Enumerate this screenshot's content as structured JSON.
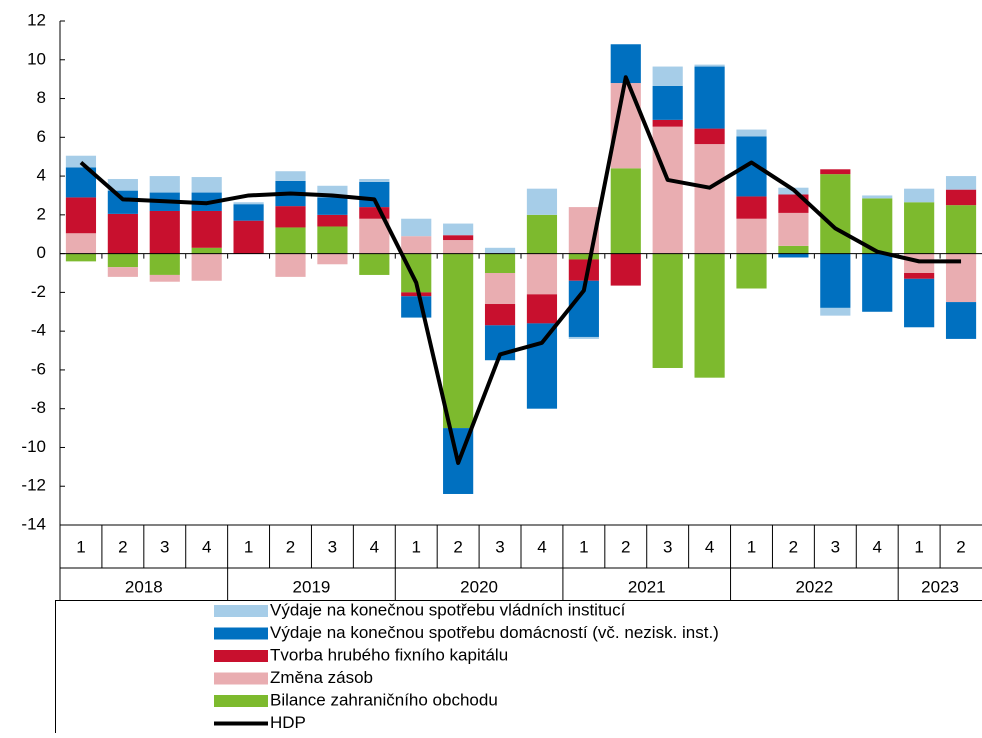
{
  "chart_data": {
    "type": "bar",
    "stacked": true,
    "categories": [
      "1",
      "2",
      "3",
      "4",
      "1",
      "2",
      "3",
      "4",
      "1",
      "2",
      "3",
      "4",
      "1",
      "2",
      "3",
      "4",
      "1",
      "2",
      "3",
      "4",
      "1",
      "2"
    ],
    "x_groups": [
      {
        "label": "2018",
        "count": 4
      },
      {
        "label": "2019",
        "count": 4
      },
      {
        "label": "2020",
        "count": 4
      },
      {
        "label": "2021",
        "count": 4
      },
      {
        "label": "2022",
        "count": 4
      },
      {
        "label": "2023",
        "count": 2
      }
    ],
    "ylim": [
      -14,
      12
    ],
    "yticks": [
      -14,
      -12,
      -10,
      -8,
      -6,
      -4,
      -2,
      0,
      2,
      4,
      6,
      8,
      10,
      12
    ],
    "series": [
      {
        "name": "Výdaje na konečnou spotřebu vládních institucí",
        "color": "#a6cde8",
        "values": [
          0.6,
          0.6,
          0.85,
          0.8,
          0.1,
          0.5,
          0.6,
          0.15,
          0.9,
          0.6,
          0.3,
          1.35,
          -0.1,
          0,
          1.0,
          0.1,
          0.35,
          0.35,
          -0.4,
          0.15,
          0.7,
          0.7
        ]
      },
      {
        "name": "Výdaje na konečnou spotřebu domácností (vč. nezisk. inst.)",
        "color": "#0070c0",
        "values": [
          1.55,
          1.2,
          0.95,
          0.95,
          0.85,
          1.3,
          0.9,
          1.3,
          -1.1,
          -3.4,
          -1.8,
          -4.4,
          -2.9,
          2.0,
          1.75,
          3.2,
          3.1,
          -0.2,
          -2.8,
          -3.0,
          -2.5,
          -1.9
        ]
      },
      {
        "name": "Tvorba hrubého fixního kapitálu",
        "color": "#c8102e",
        "values": [
          1.85,
          2.05,
          2.2,
          1.9,
          1.7,
          1.1,
          0.6,
          0.6,
          -0.2,
          0.25,
          -1.1,
          -1.5,
          -1.1,
          -1.65,
          0.35,
          0.8,
          1.15,
          0.95,
          0.25,
          0,
          -0.3,
          0.8
        ]
      },
      {
        "name": "Změna zásob",
        "color": "#e9adb1",
        "values": [
          1.05,
          -0.5,
          -0.35,
          -1.4,
          0,
          -1.2,
          -0.55,
          1.8,
          0.9,
          0.7,
          -1.6,
          -2.1,
          2.4,
          4.4,
          6.55,
          5.65,
          1.8,
          1.7,
          0,
          0,
          -1.0,
          -2.5
        ]
      },
      {
        "name": "Bilance zahraničního obchodu",
        "color": "#7dba2e",
        "values": [
          -0.4,
          -0.7,
          -1.1,
          0.3,
          0,
          1.35,
          1.4,
          -1.1,
          -2.0,
          -9.0,
          -1.0,
          2.0,
          -0.3,
          4.4,
          -5.9,
          -6.4,
          -1.8,
          0.4,
          4.1,
          2.85,
          2.65,
          2.5
        ]
      },
      {
        "name": "HDP",
        "color": "#000000",
        "type": "line",
        "values": [
          4.7,
          2.8,
          2.7,
          2.6,
          3.0,
          3.1,
          3.0,
          2.8,
          -1.5,
          -10.8,
          -5.2,
          -4.6,
          -1.9,
          9.1,
          3.8,
          3.4,
          4.7,
          3.3,
          1.3,
          0.1,
          -0.4,
          -0.4
        ]
      }
    ]
  }
}
